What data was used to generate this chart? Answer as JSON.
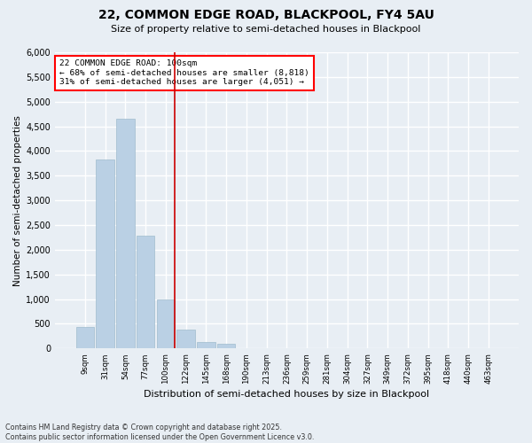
{
  "title1": "22, COMMON EDGE ROAD, BLACKPOOL, FY4 5AU",
  "title2": "Size of property relative to semi-detached houses in Blackpool",
  "xlabel": "Distribution of semi-detached houses by size in Blackpool",
  "ylabel": "Number of semi-detached properties",
  "bar_labels": [
    "9sqm",
    "31sqm",
    "54sqm",
    "77sqm",
    "100sqm",
    "122sqm",
    "145sqm",
    "168sqm",
    "190sqm",
    "213sqm",
    "236sqm",
    "259sqm",
    "281sqm",
    "304sqm",
    "327sqm",
    "349sqm",
    "372sqm",
    "395sqm",
    "418sqm",
    "440sqm",
    "463sqm"
  ],
  "bar_values": [
    430,
    3820,
    4660,
    2290,
    1000,
    390,
    130,
    90,
    0,
    0,
    0,
    0,
    0,
    0,
    0,
    0,
    0,
    0,
    0,
    0,
    0
  ],
  "bar_color": "#bad0e4",
  "bar_edge_color": "#a0bcce",
  "property_bin_index": 4,
  "annotation_line1": "22 COMMON EDGE ROAD: 100sqm",
  "annotation_line2": "← 68% of semi-detached houses are smaller (8,818)",
  "annotation_line3": "31% of semi-detached houses are larger (4,051) →",
  "ylim": [
    0,
    6000
  ],
  "yticks": [
    0,
    500,
    1000,
    1500,
    2000,
    2500,
    3000,
    3500,
    4000,
    4500,
    5000,
    5500,
    6000
  ],
  "footer_line1": "Contains HM Land Registry data © Crown copyright and database right 2025.",
  "footer_line2": "Contains public sector information licensed under the Open Government Licence v3.0.",
  "bg_color": "#e8eef4",
  "grid_color": "#d0dae4"
}
